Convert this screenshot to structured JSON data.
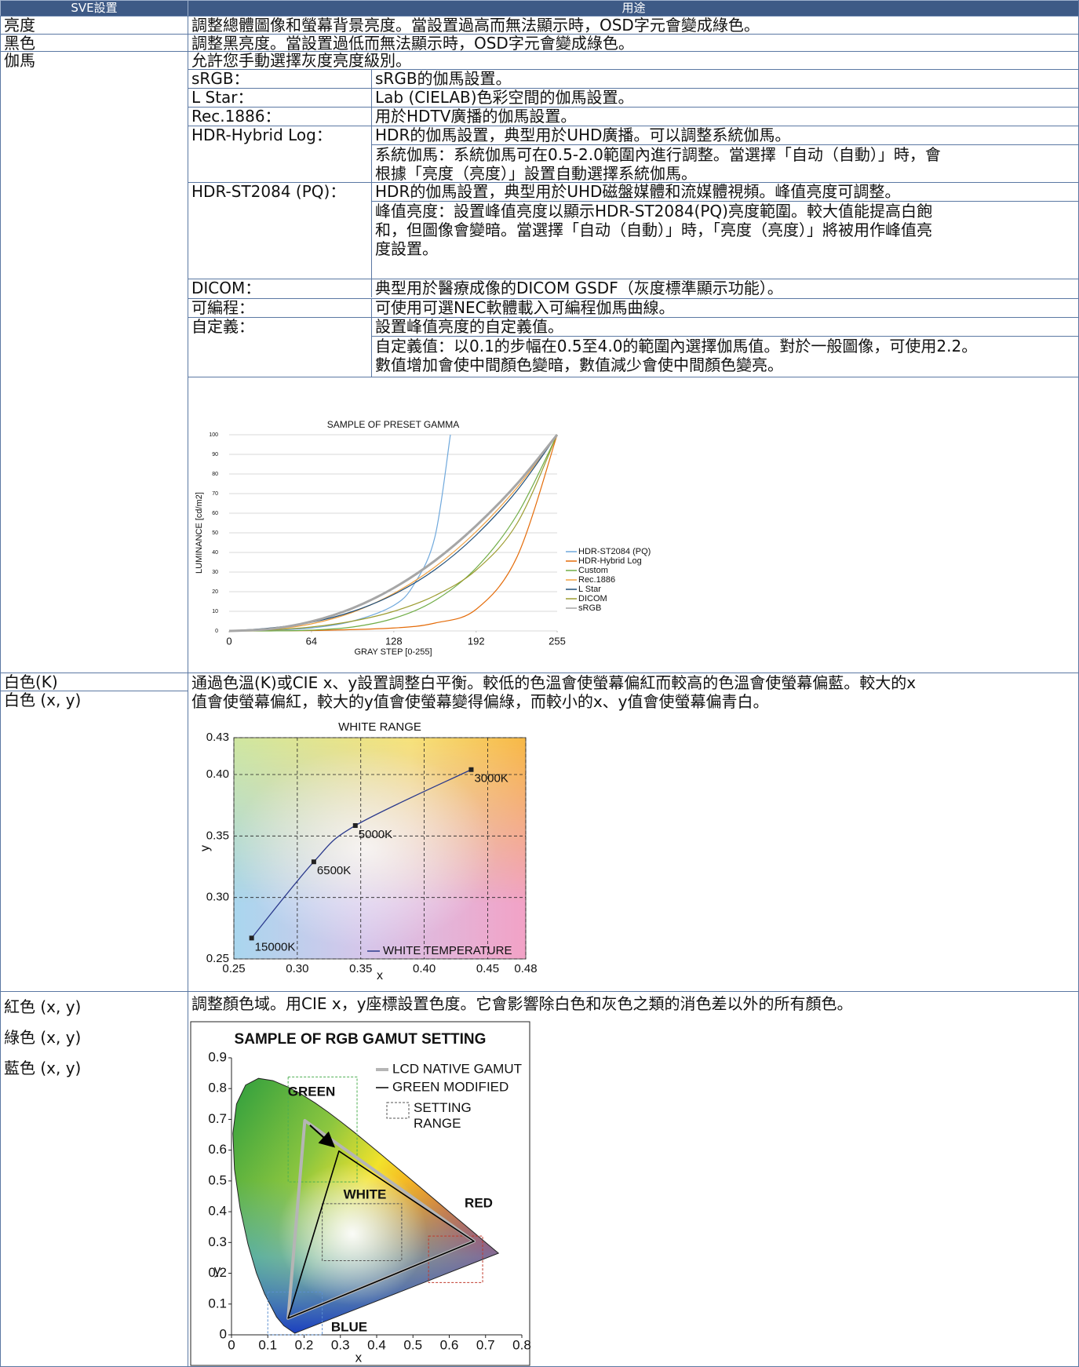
{
  "table": {
    "header": [
      "SVE設置",
      "用途"
    ],
    "rows": [
      {
        "names": [
          "亮度"
        ],
        "lines": [
          "調整總體圖像和螢幕背景亮度。當設置過高而無法顯示時，OSD字元會變成綠色。"
        ]
      },
      {
        "names": [
          "黑色"
        ],
        "lines": [
          "調整黑亮度。當設置過低而無法顯示時，OSD字元會變成綠色。"
        ]
      },
      {
        "names": [
          "伽馬"
        ],
        "lines": [
          "允許您手動選擇灰度亮度級別。"
        ],
        "items": [
          {
            "label": "sRGB：",
            "text": "sRGB的伽馬設置。"
          },
          {
            "label": "L Star：",
            "text": "Lab (CIELAB)色彩空間的伽馬設置。"
          },
          {
            "label": "Rec.1886：",
            "text": "用於HDTV廣播的伽馬設置。"
          },
          {
            "label": "HDR-Hybrid Log：",
            "text": "HDR的伽馬設置，典型用於UHD廣播。可以調整系統伽馬。",
            "note": [
              "系統伽馬：系統伽馬可在0.5-2.0範圍內進行調整。當選擇「自动（自動）」時，會",
              "根據「亮度（亮度）」設置自動選擇系統伽馬。"
            ]
          },
          {
            "label": "HDR-ST2084 (PQ)：",
            "text": "HDR的伽馬設置，典型用於UHD磁盤媒體和流媒體視頻。峰值亮度可調整。",
            "note": [
              "峰值亮度：設置峰值亮度以顯示HDR-ST2084(PQ)亮度範圍。較大值能提高白飽",
              "和，但圖像會變暗。當選擇「自动（自動）」時，「亮度（亮度）」將被用作峰值亮",
              "度設置。"
            ]
          },
          {
            "label": "DICOM：",
            "text": "典型用於醫療成像的DICOM GSDF（灰度標準顯示功能）。"
          },
          {
            "label": "可編程：",
            "text": "可使用可選NEC軟體載入可編程伽馬曲線。"
          },
          {
            "label": "自定義：",
            "text": "設置峰值亮度的自定義值。",
            "note": [
              "自定義值：以0.1的步幅在0.5至4.0的範圍內選擇伽馬值。對於一般圖像，可使用2.2。",
              "數值增加會使中間顏色變暗，數值減少會使中間顏色變亮。"
            ]
          }
        ]
      },
      {
        "names": [
          "白色(K)",
          "白色 (x, y)"
        ],
        "lines": [
          "通過色溫(K)或CIE x、y設置調整白平衡。較低的色溫會使螢幕偏紅而較高的色溫會使螢幕偏藍。較大的x",
          "值會使螢幕偏紅，較大的y值會使螢幕變得偏綠，而較小的x、y值會使螢幕偏青白。"
        ]
      },
      {
        "names": [
          "紅色 (x, y)",
          "綠色 (x, y)",
          "藍色 (x, y)"
        ],
        "lines": [
          "調整顏色域。用CIE x，y座標設置色度。它會影響除白色和灰色之類的消色差以外的所有顏色。"
        ]
      }
    ]
  },
  "chart_data": [
    {
      "type": "line",
      "title": "SAMPLE OF PRESET GAMMA",
      "x_label": "GRAY STEP [0-255]",
      "y_label": "LUMINANCE [cd/m2]",
      "xlim": [
        0,
        255
      ],
      "ylim": [
        0,
        100
      ],
      "xticks": [
        0,
        64,
        128,
        192,
        255
      ],
      "yticks": [
        0,
        10,
        20,
        30,
        40,
        50,
        60,
        70,
        80,
        90,
        100
      ],
      "grid": true,
      "legend": "right",
      "series": [
        {
          "name": "HDR-ST2084 (PQ)",
          "color": "#6fa8dc",
          "x": [
            0,
            32,
            64,
            96,
            128,
            144,
            160,
            172
          ],
          "values": [
            0,
            0.3,
            1.5,
            5,
            13,
            24,
            48,
            100
          ]
        },
        {
          "name": "HDR-Hybrid Log",
          "color": "#e46c0a",
          "x": [
            0,
            64,
            128,
            160,
            192,
            224,
            255
          ],
          "values": [
            0,
            0.2,
            1.5,
            4,
            11,
            38,
            100
          ]
        },
        {
          "name": "Custom",
          "color": "#70ad47",
          "x": [
            0,
            32,
            64,
            96,
            128,
            160,
            192,
            224,
            255
          ],
          "values": [
            0,
            0,
            0.4,
            2,
            6.4,
            15.5,
            32.1,
            59.4,
            100
          ]
        },
        {
          "name": "Rec.1886",
          "color": "#f0a040",
          "x": [
            0,
            32,
            64,
            96,
            128,
            160,
            192,
            224,
            255
          ],
          "values": [
            0,
            0.7,
            3.6,
            9.5,
            19.1,
            32.6,
            50.6,
            73.2,
            100
          ]
        },
        {
          "name": "L Star",
          "color": "#1f4e79",
          "x": [
            0,
            32,
            64,
            96,
            128,
            160,
            192,
            224,
            255
          ],
          "values": [
            0,
            1.5,
            4.4,
            9.9,
            18.6,
            31.2,
            48.8,
            71.7,
            100
          ]
        },
        {
          "name": "DICOM",
          "color": "#9c9c30",
          "x": [
            0,
            32,
            64,
            96,
            128,
            160,
            192,
            224,
            255
          ],
          "values": [
            0,
            0.5,
            2,
            5,
            10,
            18,
            31,
            55,
            100
          ]
        },
        {
          "name": "sRGB",
          "color": "#a6a6a6",
          "x": [
            0,
            32,
            64,
            96,
            128,
            160,
            192,
            224,
            255
          ],
          "values": [
            0,
            1,
            4.8,
            11.6,
            21.9,
            35.8,
            53.6,
            75.1,
            100
          ]
        }
      ]
    },
    {
      "type": "scatter",
      "title": "WHITE RANGE",
      "x_label": "x",
      "y_label": "y",
      "xlim": [
        0.25,
        0.48
      ],
      "ylim": [
        0.25,
        0.43
      ],
      "xticks": [
        0.25,
        {
          "value": 0.3,
          "label": "0.30"
        },
        0.35,
        {
          "value": 0.4,
          "label": "0.40"
        },
        0.45,
        0.48
      ],
      "yticks": [
        0.25,
        {
          "value": 0.3,
          "label": "0.30"
        },
        0.35,
        {
          "value": 0.4,
          "label": "0.40"
        },
        0.43
      ],
      "grid": true,
      "legend": "lower right",
      "series": [
        {
          "name": "WHITE TEMPERATURE",
          "color": "#2b3a8c",
          "x": [
            0.264,
            0.313,
            0.3457,
            0.437
          ],
          "values": [
            0.267,
            0.329,
            0.3585,
            0.404
          ],
          "labels": [
            "15000K",
            "6500K",
            "5000K",
            "3000K"
          ]
        }
      ]
    },
    {
      "type": "gamut",
      "title": "SAMPLE OF RGB GAMUT SETTING",
      "x_label": "x",
      "y_label": "y",
      "xlim": [
        0,
        0.8
      ],
      "ylim": [
        0,
        0.9
      ],
      "xticks": [
        0,
        0.1,
        0.2,
        0.3,
        0.4,
        0.5,
        0.6,
        0.7,
        0.8
      ],
      "yticks": [
        0,
        0.1,
        0.2,
        0.3,
        0.4,
        0.5,
        0.6,
        0.7,
        0.8,
        0.9
      ],
      "legend": "upper right",
      "series": [
        {
          "name": "LCD NATIVE GAMUT",
          "color": "#b5b5b5",
          "x": [
            0.668,
            0.202,
            0.156
          ],
          "values": [
            0.304,
            0.696,
            0.054
          ]
        },
        {
          "name": "GREEN MODIFIED",
          "color": "#000000",
          "x": [
            0.668,
            0.296,
            0.156
          ],
          "values": [
            0.304,
            0.597,
            0.054
          ]
        }
      ],
      "region_legend": "SETTING RANGE",
      "regions": [
        {
          "label": "GREEN",
          "color": "#4caf50",
          "xlim": [
            0.156,
            0.346
          ],
          "ylim": [
            0.497,
            0.838
          ]
        },
        {
          "label": "WHITE",
          "color": "#555555",
          "xlim": [
            0.25,
            0.469
          ],
          "ylim": [
            0.241,
            0.426
          ]
        },
        {
          "label": "RED",
          "color": "#c0392b",
          "xlim": [
            0.543,
            0.692
          ],
          "ylim": [
            0.17,
            0.321
          ]
        },
        {
          "label": "BLUE",
          "color": "#5b8fd0",
          "xlim": [
            0.1,
            0.25
          ],
          "ylim": [
            0,
            0.139
          ]
        }
      ]
    }
  ]
}
